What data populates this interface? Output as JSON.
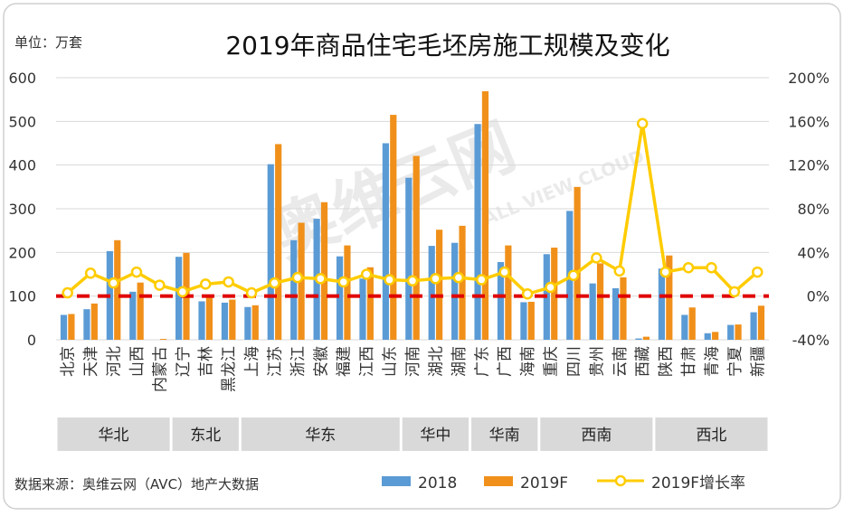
{
  "unit_label": "单位：万套",
  "source": "数据来源：奥维云网（AVC）地产大数据",
  "watermark": "奥维云网",
  "watermark_sub": "ALL VIEW CLOUD",
  "colors": {
    "bar_2018": "#5b9bd5",
    "bar_2019f": "#f0901a",
    "line_growth": "#ffcc00",
    "zero_line": "#e00000",
    "region_band": "#d9d9d9",
    "text": "#333333"
  },
  "chart_data": {
    "type": "bar+line",
    "title": "2019年商品住宅毛坯房施工规模及变化",
    "categories": [
      "北京",
      "天津",
      "河北",
      "山西",
      "内蒙古",
      "辽宁",
      "吉林",
      "黑龙江",
      "上海",
      "江苏",
      "浙江",
      "安徽",
      "福建",
      "江西",
      "山东",
      "河南",
      "湖北",
      "湖南",
      "广东",
      "广西",
      "海南",
      "重庆",
      "四川",
      "贵州",
      "云南",
      "西藏",
      "陕西",
      "甘肃",
      "青海",
      "宁夏",
      "新疆"
    ],
    "series": [
      {
        "name": "2018",
        "axis": "left",
        "values": [
          57,
          70,
          203,
          110,
          0,
          190,
          88,
          85,
          75,
          402,
          228,
          277,
          191,
          140,
          450,
          371,
          215,
          222,
          494,
          178,
          86,
          196,
          295,
          129,
          118,
          3,
          163,
          57,
          15,
          34,
          63
        ]
      },
      {
        "name": "2019F",
        "axis": "left",
        "values": [
          59,
          83,
          228,
          131,
          2,
          199,
          98,
          92,
          79,
          448,
          268,
          315,
          216,
          166,
          515,
          421,
          252,
          261,
          569,
          216,
          87,
          211,
          350,
          175,
          143,
          7,
          193,
          74,
          18,
          35,
          78
        ]
      },
      {
        "name": "2019F增长率",
        "axis": "right",
        "type": "line",
        "values": [
          3,
          21,
          12,
          22,
          10,
          4,
          11,
          13,
          3,
          12,
          17,
          16,
          13,
          20,
          15,
          14,
          16,
          17,
          15,
          22,
          2,
          8,
          19,
          35,
          23,
          158,
          22,
          26,
          26,
          4,
          22
        ]
      }
    ],
    "yleft": {
      "min": 0,
      "max": 600,
      "ticks": [
        0,
        100,
        200,
        300,
        400,
        500,
        600
      ]
    },
    "yright": {
      "min": -40,
      "max": 200,
      "ticks": [
        "-40%",
        "0%",
        "40%",
        "80%",
        "120%",
        "160%",
        "200%"
      ]
    },
    "zero_growth_reference": 0,
    "regions": [
      {
        "name": "华北",
        "count": 5
      },
      {
        "name": "东北",
        "count": 3
      },
      {
        "name": "华东",
        "count": 7
      },
      {
        "name": "华中",
        "count": 3
      },
      {
        "name": "华南",
        "count": 3
      },
      {
        "name": "西南",
        "count": 5
      },
      {
        "name": "西北",
        "count": 5
      }
    ],
    "legend": [
      {
        "name": "2018",
        "kind": "bar"
      },
      {
        "name": "2019F",
        "kind": "bar"
      },
      {
        "name": "2019F增长率",
        "kind": "line"
      }
    ]
  }
}
